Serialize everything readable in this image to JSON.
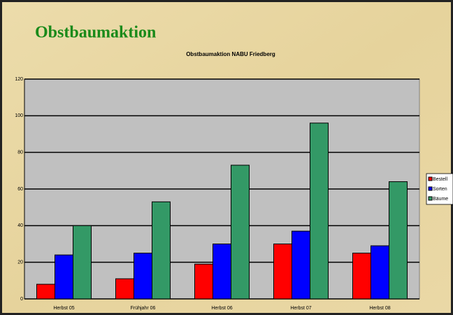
{
  "slide_title": "Obstbaumaktion",
  "chart_data": {
    "type": "bar",
    "title": "Obstbaumaktion NABU Friedberg",
    "categories": [
      "Herbst 05",
      "Frühjahr 06",
      "Herbst 06",
      "Herbst 07",
      "Herbst 08"
    ],
    "series": [
      {
        "name": "Bestell",
        "color": "#ff0000",
        "values": [
          8,
          11,
          19,
          30,
          25
        ]
      },
      {
        "name": "Sorten",
        "color": "#0000ff",
        "values": [
          24,
          25,
          30,
          37,
          29
        ]
      },
      {
        "name": "Bäume",
        "color": "#339966",
        "values": [
          40,
          53,
          73,
          96,
          64
        ]
      }
    ],
    "ylim": [
      0,
      120
    ],
    "yticks": [
      0,
      20,
      40,
      60,
      80,
      100,
      120
    ],
    "grid": true,
    "legend": "right"
  }
}
